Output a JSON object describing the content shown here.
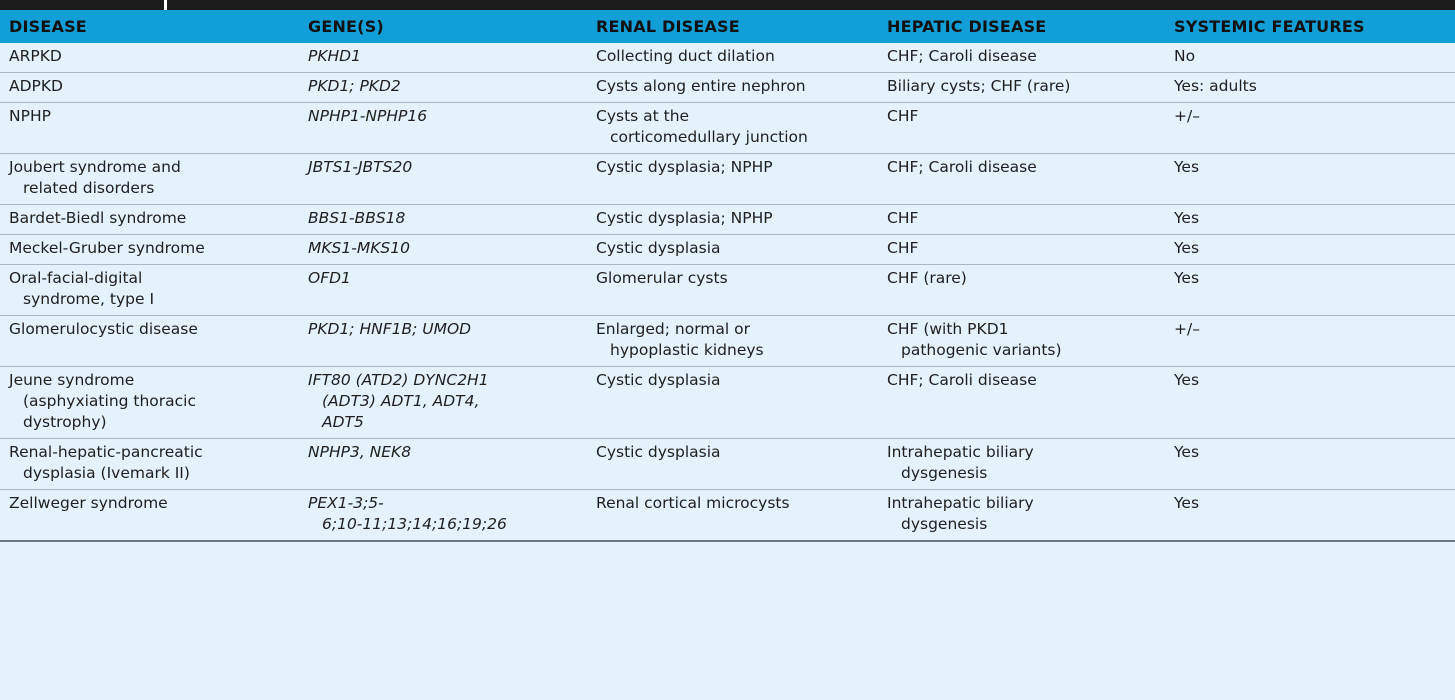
{
  "headers": [
    "DISEASE",
    "GENE(S)",
    "RENAL DISEASE",
    "HEPATIC DISEASE",
    "SYSTEMIC FEATURES"
  ],
  "rows": [
    {
      "disease": [
        "ARPKD"
      ],
      "genes": [
        "PKHD1"
      ],
      "renal": [
        "Collecting duct dilation"
      ],
      "hepatic": [
        "CHF; Caroli disease"
      ],
      "systemic": [
        "No"
      ]
    },
    {
      "disease": [
        "ADPKD"
      ],
      "genes": [
        "PKD1; PKD2"
      ],
      "renal": [
        "Cysts along entire nephron"
      ],
      "hepatic": [
        "Biliary cysts; CHF (rare)"
      ],
      "systemic": [
        "Yes: adults"
      ]
    },
    {
      "disease": [
        "NPHP"
      ],
      "genes": [
        "NPHP1-NPHP16"
      ],
      "renal": [
        "Cysts at the",
        "corticomedullary junction"
      ],
      "hepatic": [
        "CHF"
      ],
      "systemic": [
        "+/–"
      ]
    },
    {
      "disease": [
        "Joubert syndrome and",
        "related disorders"
      ],
      "genes": [
        "JBTS1-JBTS20"
      ],
      "renal": [
        "Cystic dysplasia; NPHP"
      ],
      "hepatic": [
        "CHF; Caroli disease"
      ],
      "systemic": [
        "Yes"
      ]
    },
    {
      "disease": [
        "Bardet-Biedl syndrome"
      ],
      "genes": [
        "BBS1-BBS18"
      ],
      "renal": [
        "Cystic dysplasia; NPHP"
      ],
      "hepatic": [
        "CHF"
      ],
      "systemic": [
        "Yes"
      ]
    },
    {
      "disease": [
        "Meckel-Gruber syndrome"
      ],
      "genes": [
        "MKS1-MKS10"
      ],
      "renal": [
        "Cystic dysplasia"
      ],
      "hepatic": [
        "CHF"
      ],
      "systemic": [
        "Yes"
      ]
    },
    {
      "disease": [
        "Oral-facial-digital",
        "syndrome, type I"
      ],
      "genes": [
        "OFD1"
      ],
      "renal": [
        "Glomerular cysts"
      ],
      "hepatic": [
        "CHF (rare)"
      ],
      "systemic": [
        "Yes"
      ]
    },
    {
      "disease": [
        "Glomerulocystic disease"
      ],
      "genes": [
        "PKD1; HNF1B; UMOD"
      ],
      "renal": [
        "Enlarged; normal or",
        "hypoplastic kidneys"
      ],
      "hepatic": [
        "CHF (with PKD1",
        "pathogenic variants)"
      ],
      "systemic": [
        "+/–"
      ]
    },
    {
      "disease": [
        "Jeune syndrome",
        "(asphyxiating thoracic",
        "dystrophy)"
      ],
      "genes": [
        "IFT80 (ATD2) DYNC2H1",
        "(ADT3) ADT1, ADT4,",
        "ADT5"
      ],
      "renal": [
        "Cystic dysplasia"
      ],
      "hepatic": [
        "CHF; Caroli disease"
      ],
      "systemic": [
        "Yes"
      ]
    },
    {
      "disease": [
        "Renal-hepatic-pancreatic",
        "dysplasia (Ivemark II)"
      ],
      "genes": [
        "NPHP3, NEK8"
      ],
      "renal": [
        "Cystic dysplasia"
      ],
      "hepatic": [
        "Intrahepatic biliary",
        "dysgenesis"
      ],
      "systemic": [
        "Yes"
      ]
    },
    {
      "disease": [
        "Zellweger syndrome"
      ],
      "genes": [
        "PEX1-3;5-",
        "6;10-11;13;14;16;19;26"
      ],
      "renal": [
        "Renal cortical microcysts"
      ],
      "hepatic": [
        "Intrahepatic biliary",
        "dysgenesis"
      ],
      "systemic": [
        "Yes"
      ]
    }
  ]
}
